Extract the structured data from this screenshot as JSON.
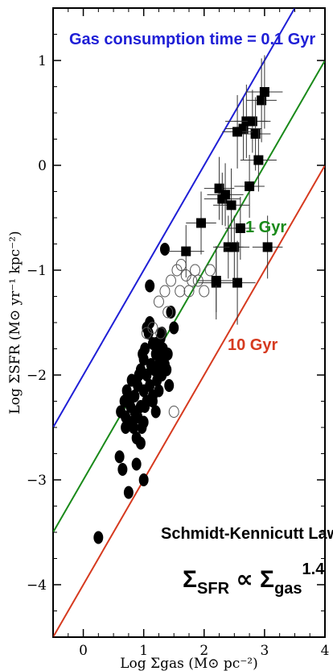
{
  "chart_data": {
    "type": "scatter",
    "title": "",
    "xlabel": "Log Σgas (M⊙ pc⁻²)",
    "ylabel": "Log ΣSFR (M⊙ yr⁻¹ kpc⁻²)",
    "xlim": [
      -0.5,
      4.0
    ],
    "ylim": [
      -4.5,
      1.5
    ],
    "x_ticks": [
      "0",
      "1",
      "2",
      "3",
      "4"
    ],
    "y_ticks": [
      "1",
      "0",
      "−1",
      "−2",
      "−3",
      "−4"
    ],
    "grid": false,
    "lines": [
      {
        "label": "Gas consumption time = 0.1 Gyr",
        "intercept": -2.0,
        "slope": 1.0,
        "color": "#1f1fd6"
      },
      {
        "label": "1 Gyr",
        "intercept": -3.0,
        "slope": 1.0,
        "color": "#1a8a1a"
      },
      {
        "label": "10 Gyr",
        "intercept": -4.0,
        "slope": 1.0,
        "color": "#d63a1f"
      }
    ],
    "law_label": "Schmidt-Kennicutt Law:",
    "law_formula": {
      "lhs": "Σ",
      "lhs_sub": "SFR",
      "rel": " ∝ ",
      "rhs": "Σ",
      "rhs_sub": "gas",
      "rhs_sup": "1.4"
    },
    "series": [
      {
        "name": "",
        "marker": "filled-circle",
        "x": [
          0.25,
          0.6,
          0.62,
          0.68,
          0.7,
          0.72,
          0.75,
          0.78,
          0.8,
          0.8,
          0.83,
          0.85,
          0.85,
          0.88,
          0.9,
          0.9,
          0.92,
          0.95,
          0.95,
          0.97,
          1.0,
          1.0,
          1.0,
          1.02,
          1.05,
          1.05,
          1.08,
          1.1,
          1.1,
          1.12,
          1.15,
          1.15,
          1.18,
          1.2,
          1.2,
          1.22,
          1.25,
          1.25,
          1.28,
          1.3,
          1.3,
          1.32,
          1.35,
          1.38,
          1.4,
          1.42,
          1.45,
          1.5,
          0.65,
          0.7,
          0.75,
          0.88,
          0.95,
          1.0,
          0.98,
          1.1,
          1.2,
          1.15,
          1.05,
          1.3,
          1.02,
          1.35
        ],
        "y": [
          -3.55,
          -2.78,
          -2.35,
          -2.25,
          -2.5,
          -2.15,
          -3.12,
          -2.3,
          -2.45,
          -2.05,
          -2.5,
          -2.2,
          -2.35,
          -2.6,
          -2.1,
          -2.4,
          -2.0,
          -1.95,
          -2.3,
          -2.5,
          -1.85,
          -2.15,
          -2.45,
          -1.75,
          -2.25,
          -2.0,
          -1.6,
          -1.5,
          -2.1,
          -1.9,
          -1.7,
          -2.2,
          -1.95,
          -2.35,
          -1.8,
          -2.05,
          -2.15,
          -1.9,
          -1.65,
          -2.0,
          -1.85,
          -1.75,
          -0.8,
          -1.95,
          -1.8,
          -2.1,
          -1.4,
          -1.55,
          -2.9,
          -2.4,
          -2.2,
          -2.85,
          -2.65,
          -3.0,
          -1.8,
          -1.15,
          -1.7,
          -2.25,
          -1.55,
          -1.6,
          -2.3,
          -1.9
        ]
      },
      {
        "name": "",
        "marker": "open-circle",
        "x": [
          1.05,
          1.15,
          1.25,
          1.35,
          1.45,
          1.55,
          1.62,
          1.7,
          1.75,
          1.85,
          1.9,
          2.0,
          2.1,
          1.28,
          1.4,
          1.5,
          1.6,
          1.8
        ],
        "y": [
          -1.6,
          -1.55,
          -1.3,
          -1.2,
          -1.1,
          -1.0,
          -0.95,
          -1.05,
          -1.2,
          -1.0,
          -1.1,
          -1.2,
          -1.0,
          -1.6,
          -1.4,
          -2.35,
          -1.2,
          -1.1
        ],
        "marker_color": "#555555"
      },
      {
        "name": "",
        "marker": "filled-square",
        "x": [
          1.7,
          1.95,
          2.2,
          2.25,
          2.3,
          2.4,
          2.45,
          2.5,
          2.55,
          2.6,
          2.65,
          2.7,
          2.75,
          2.8,
          2.85,
          2.9,
          2.95,
          3.0,
          3.05,
          2.2,
          2.55,
          2.35
        ],
        "y": [
          -0.82,
          -0.55,
          -1.12,
          -0.22,
          -0.32,
          -0.78,
          -0.38,
          -0.78,
          -1.12,
          -0.6,
          0.35,
          0.42,
          -0.2,
          0.42,
          0.3,
          0.05,
          0.62,
          0.7,
          -0.78,
          -1.1,
          0.32,
          -0.28
        ],
        "x_err": [
          0.3,
          0.25,
          0.3,
          0.25,
          0.3,
          0.25,
          0.3,
          0.25,
          0.3,
          0.25,
          0.3,
          0.35,
          0.25,
          0.3,
          0.25,
          0.3,
          0.25,
          0.3,
          0.25,
          0.3,
          0.25,
          0.3
        ],
        "y_err": [
          0.25,
          0.3,
          0.35,
          0.3,
          0.25,
          0.3,
          0.35,
          0.3,
          0.4,
          0.3,
          0.3,
          0.35,
          0.3,
          0.3,
          0.35,
          0.3,
          0.4,
          0.35,
          0.3,
          0.3,
          0.35,
          0.3
        ]
      }
    ]
  }
}
